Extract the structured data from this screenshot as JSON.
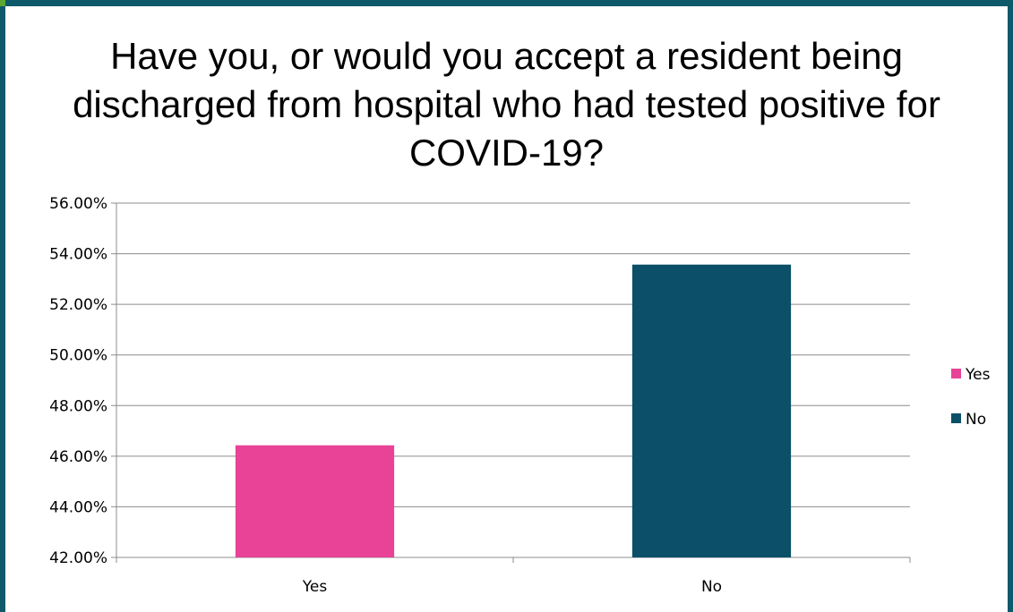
{
  "chart_data": {
    "type": "bar",
    "title": "Have you, or would you accept a resident being discharged from hospital who had tested positive for COVID-19?",
    "categories": [
      "Yes",
      "No"
    ],
    "values": [
      46.43,
      53.57
    ],
    "colors": [
      "#e84397",
      "#0b4f68"
    ],
    "ylim": [
      42,
      56
    ],
    "yticks": [
      42,
      44,
      46,
      48,
      50,
      52,
      54,
      56
    ],
    "ytick_labels": [
      "42.00%",
      "44.00%",
      "46.00%",
      "48.00%",
      "50.00%",
      "52.00%",
      "54.00%",
      "56.00%"
    ],
    "xlabel": "",
    "ylabel": "",
    "grid": true,
    "legend": {
      "placement": "right",
      "entries": [
        {
          "label": "Yes",
          "color": "#e84397"
        },
        {
          "label": "No",
          "color": "#0b4f68"
        }
      ]
    }
  },
  "theme": {
    "frame_color": "#0e5a6b",
    "accent_color": "#5aa832"
  }
}
